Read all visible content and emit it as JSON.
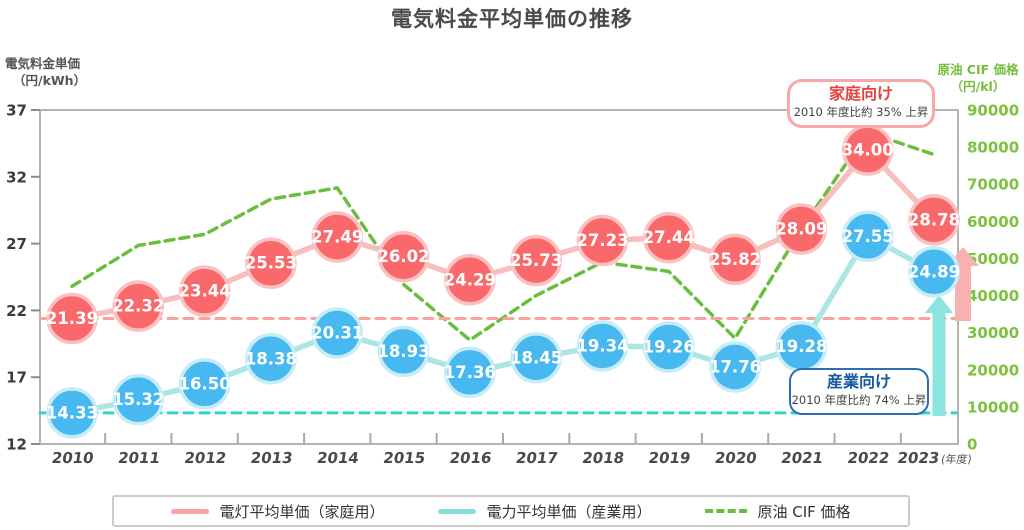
{
  "title": "電気料金平均単価の推移",
  "y_axis_left": {
    "line1": "電気料金単価",
    "line2": "（円/kWh）"
  },
  "y_axis_right": {
    "line1": "原油 CIF 価格",
    "line2": "（円/kl）"
  },
  "annotations": {
    "household": {
      "title": "家庭向け",
      "subtitle": "2010 年度比約 35% 上昇",
      "border_color": "#f9a8a8",
      "title_color": "#e6413d"
    },
    "industry": {
      "title": "産業向け",
      "subtitle": "2010 年度比約 74% 上昇",
      "border_color": "#2e6db6",
      "title_color": "#14589f"
    }
  },
  "legend": {
    "items": [
      {
        "label": "電灯平均単価（家庭用）",
        "color": "#f8a3a3",
        "dashed": false
      },
      {
        "label": "電力平均単価（産業用）",
        "color": "#85dfda",
        "dashed": false
      },
      {
        "label": "原油 CIF 価格",
        "color": "#6abe3e",
        "dashed": true
      }
    ]
  },
  "chart_data": {
    "type": "line",
    "title": "電気料金平均単価の推移",
    "categories": [
      "2010",
      "2011",
      "2012",
      "2013",
      "2014",
      "2015",
      "2016",
      "2017",
      "2018",
      "2019",
      "2020",
      "2021",
      "2022",
      "2023"
    ],
    "x_suffix": "(年度)",
    "series": [
      {
        "name": "電灯平均単価（家庭用）",
        "axis": "left",
        "marker": "circle",
        "point_color": "#f9696b",
        "ring_color": "#fbc0c0",
        "line_color": "#f8bdbd",
        "values": [
          21.39,
          22.32,
          23.44,
          25.53,
          27.49,
          26.02,
          24.29,
          25.73,
          27.23,
          27.44,
          25.82,
          28.09,
          34.0,
          28.78
        ]
      },
      {
        "name": "電力平均単価（産業用）",
        "axis": "left",
        "marker": "circle",
        "point_color": "#47b8f0",
        "ring_color": "#c6ecf6",
        "line_color": "#abe6e3",
        "values": [
          14.33,
          15.32,
          16.5,
          18.38,
          20.31,
          18.93,
          17.36,
          18.45,
          19.34,
          19.26,
          17.76,
          19.28,
          27.55,
          24.89
        ]
      },
      {
        "name": "原油 CIF 価格",
        "axis": "right",
        "marker": "none",
        "style": "dashed",
        "color": "#6abe3e",
        "values": [
          42500,
          53500,
          56500,
          66000,
          69000,
          43000,
          28000,
          40000,
          49000,
          46500,
          28500,
          58000,
          84000,
          78000
        ]
      }
    ],
    "baselines": [
      {
        "axis": "left",
        "value": 21.39,
        "color": "#f9a2a2"
      },
      {
        "axis": "left",
        "value": 14.33,
        "color": "#2fd4cd"
      }
    ],
    "y_left": {
      "min": 12,
      "max": 37,
      "ticks": [
        37,
        32,
        27,
        22,
        17,
        12
      ]
    },
    "y_right": {
      "min": 0,
      "max": 90000,
      "ticks": [
        90000,
        80000,
        70000,
        60000,
        50000,
        40000,
        30000,
        20000,
        10000,
        0
      ]
    },
    "arrow_colors": {
      "household": "#f8b0b0",
      "industry": "#8be4de"
    },
    "grid": false,
    "legend_position": "bottom"
  }
}
